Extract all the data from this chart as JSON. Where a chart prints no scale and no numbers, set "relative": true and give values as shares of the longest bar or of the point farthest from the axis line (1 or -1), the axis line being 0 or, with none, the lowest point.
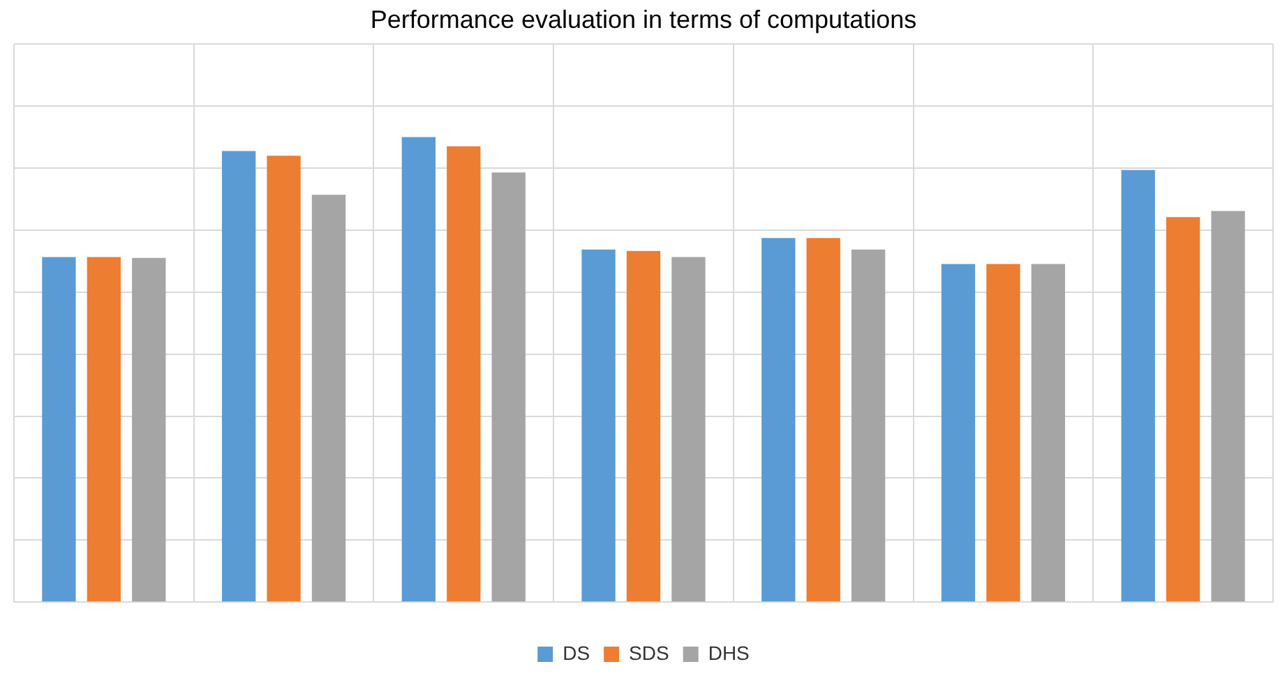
{
  "chart_data": {
    "type": "bar",
    "title": "Performance evaluation in terms of computations",
    "relative": true,
    "categories": [
      null,
      null,
      null,
      null,
      null,
      null,
      null
    ],
    "series": [
      {
        "name": "DS",
        "color": "#5b9bd5",
        "values": [
          0.742,
          0.97,
          1,
          0.758,
          0.783,
          0.727,
          0.929
        ]
      },
      {
        "name": "SDS",
        "color": "#ed7d31",
        "values": [
          0.742,
          0.96,
          0.98,
          0.755,
          0.783,
          0.727,
          0.828
        ]
      },
      {
        "name": "DHS",
        "color": "#a5a5a5",
        "values": [
          0.74,
          0.876,
          0.924,
          0.742,
          0.758,
          0.727,
          0.841
        ]
      }
    ],
    "grid": true,
    "legend": "bottom"
  }
}
